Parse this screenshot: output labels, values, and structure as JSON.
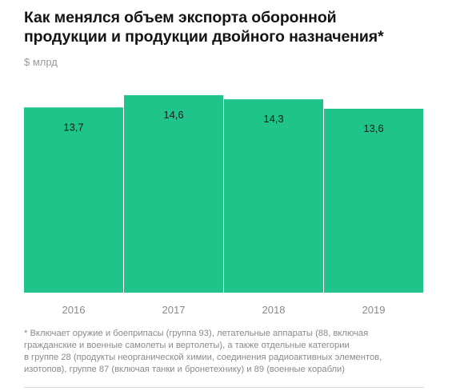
{
  "header": {
    "title_line1": "Как менялся объем экспорта оборонной",
    "title_line2": "продукции и продукции двойного назначения*",
    "unit": "$ млрд"
  },
  "chart_data": {
    "type": "bar",
    "categories": [
      "2016",
      "2017",
      "2018",
      "2019"
    ],
    "values": [
      13.7,
      14.6,
      14.3,
      13.6
    ],
    "value_labels": [
      "13,7",
      "14,6",
      "14,3",
      "13,6"
    ],
    "title": "Как менялся объем экспорта оборонной продукции и продукции двойного назначения*",
    "ylabel": "$ млрд",
    "xlabel": "",
    "ylim": [
      0,
      14.9
    ],
    "grid": false,
    "legend": "none",
    "bar_color": "#1ec48a"
  },
  "footnote": {
    "line1": "* Включает оружие и боеприпасы (группа 93), летательные аппараты (88, включая",
    "line2": "гражданские и военные самолеты и вертолеты), а также отдельные категории",
    "line3": "в группе 28 (продукты неорганической химии, соединения радиоактивных элементов,",
    "line4": "изотопов), группе 87 (включая танки и бронетехнику) и 89 (военные корабли)"
  }
}
